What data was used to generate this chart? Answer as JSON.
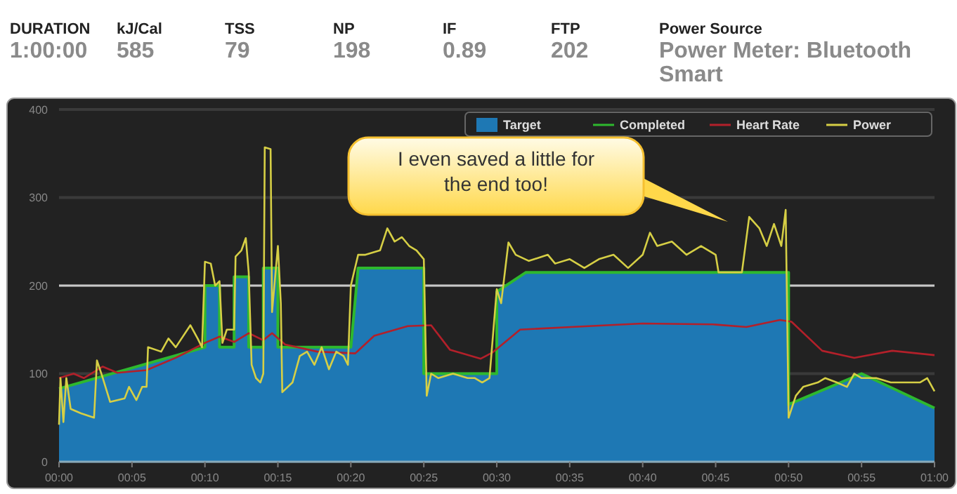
{
  "chart_data": [
    {
      "type": "other",
      "annotations": [
        "DURATION",
        "1:00:00",
        "kJ/Cal",
        "585",
        "TSS",
        "79",
        "NP",
        "198",
        "IF",
        "0.89",
        "FTP",
        "202",
        "Power Source",
        "Power Meter: Bluetooth Smart"
      ]
    },
    {
      "type": "line",
      "xlim": [
        0,
        60
      ],
      "ylim": [
        0,
        400
      ],
      "yticks": [
        0,
        100,
        200,
        300,
        400
      ],
      "xticks": [
        {
          "value": 0,
          "label": "00:00"
        },
        {
          "value": 5,
          "label": "00:05"
        },
        {
          "value": 10,
          "label": "00:10"
        },
        {
          "value": 15,
          "label": "00:15"
        },
        {
          "value": 20,
          "label": "00:20"
        },
        {
          "value": 25,
          "label": "00:25"
        },
        {
          "value": 30,
          "label": "00:30"
        },
        {
          "value": 35,
          "label": "00:35"
        },
        {
          "value": 40,
          "label": "00:40"
        },
        {
          "value": 45,
          "label": "00:45"
        },
        {
          "value": 50,
          "label": "00:50"
        },
        {
          "value": 55,
          "label": "00:55"
        },
        {
          "value": 60,
          "label": "01:00"
        }
      ],
      "grid": "y",
      "legend": "top right",
      "ref_lines": [
        {
          "axis": "y",
          "value": 200,
          "color": "#c8c8c8"
        }
      ],
      "annotations": [
        "I even saved a little for the end too!"
      ],
      "series": [
        {
          "name": "Target",
          "type": "area",
          "color": "#1e78b4",
          "x": [
            0,
            10,
            10,
            11,
            11,
            12,
            12,
            13,
            13,
            14,
            14,
            15,
            15,
            20,
            20.5,
            25,
            25,
            30,
            30,
            32,
            50,
            50,
            55,
            60
          ],
          "values": [
            83,
            130,
            200,
            200,
            130,
            130,
            210,
            210,
            130,
            130,
            220,
            220,
            130,
            130,
            220,
            220,
            100,
            100,
            193,
            215,
            215,
            65,
            100,
            61
          ]
        },
        {
          "name": "Completed",
          "type": "line",
          "color": "#2eb82e",
          "x": [
            0,
            10,
            10,
            11,
            11,
            12,
            12,
            13,
            13,
            14,
            14,
            15,
            15,
            20,
            20.5,
            25,
            25,
            30,
            30,
            32,
            50,
            50,
            55,
            60
          ],
          "values": [
            83,
            130,
            200,
            200,
            130,
            130,
            210,
            210,
            130,
            130,
            220,
            220,
            130,
            130,
            220,
            220,
            100,
            100,
            193,
            215,
            215,
            65,
            100,
            61
          ]
        },
        {
          "name": "Heart Rate",
          "type": "line",
          "color": "#b3202a",
          "x": [
            0,
            1,
            1.7,
            3,
            4,
            6,
            8,
            10,
            11,
            12,
            13,
            14,
            14.6,
            15.5,
            17.7,
            20.3,
            21.6,
            23.9,
            25.5,
            26.8,
            28.9,
            29.7,
            31.6,
            35.1,
            40,
            44.8,
            47.1,
            49.4,
            50.2,
            52.3,
            54.5,
            57.1,
            60
          ],
          "values": [
            95,
            100,
            95,
            108,
            101,
            104,
            118,
            135,
            142,
            136,
            146,
            138,
            146,
            133,
            125,
            123,
            143,
            154,
            155,
            127,
            117,
            124,
            150,
            153,
            157,
            156,
            153,
            161,
            159,
            126,
            118,
            126,
            121
          ]
        },
        {
          "name": "Power",
          "type": "line",
          "color": "#d6cf45",
          "x": [
            0,
            0.1,
            0.3,
            0.5,
            0.8,
            1.5,
            2.4,
            2.6,
            3,
            3.5,
            4.5,
            4.8,
            5.3,
            5.7,
            6,
            6.1,
            7,
            7.5,
            8,
            9,
            9.5,
            9.8,
            10,
            10.4,
            10.7,
            11,
            11.2,
            11.5,
            12,
            12.1,
            12.5,
            12.8,
            13,
            13.2,
            13.5,
            13.8,
            14,
            14.1,
            14.5,
            14.6,
            15,
            15.2,
            15.3,
            16,
            16.5,
            17,
            17.5,
            18,
            18.5,
            19,
            19.5,
            19.8,
            20,
            20.5,
            21,
            22,
            22.5,
            23,
            23.5,
            24,
            24.5,
            25,
            25.2,
            25.5,
            26,
            27,
            28,
            28.5,
            29,
            29.5,
            30,
            30.3,
            30.8,
            31.3,
            32.2,
            33.5,
            34,
            35,
            36,
            37,
            38,
            39,
            40,
            40.5,
            41,
            42,
            43,
            44,
            45,
            45.2,
            46,
            46.8,
            47.3,
            48,
            48.5,
            49,
            49.5,
            49.8,
            50,
            50.5,
            51,
            52,
            52.5,
            53.3,
            54,
            54.5,
            55,
            56,
            57,
            58,
            59,
            59.5,
            60
          ],
          "values": [
            42,
            95,
            45,
            95,
            60,
            55,
            50,
            115,
            95,
            68,
            72,
            85,
            70,
            85,
            85,
            130,
            125,
            140,
            130,
            155,
            140,
            130,
            227,
            225,
            200,
            205,
            135,
            150,
            150,
            233,
            240,
            254,
            215,
            110,
            95,
            90,
            100,
            357,
            355,
            170,
            245,
            180,
            79,
            90,
            120,
            125,
            110,
            130,
            105,
            125,
            120,
            110,
            200,
            235,
            235,
            240,
            265,
            250,
            255,
            245,
            240,
            230,
            75,
            100,
            95,
            100,
            95,
            95,
            90,
            95,
            196,
            180,
            249,
            235,
            228,
            235,
            225,
            230,
            220,
            230,
            235,
            220,
            235,
            260,
            245,
            250,
            235,
            245,
            235,
            215,
            215,
            215,
            278,
            265,
            245,
            270,
            245,
            286,
            50,
            75,
            85,
            90,
            95,
            90,
            85,
            100,
            95,
            95,
            90,
            90,
            90,
            95,
            80
          ]
        }
      ]
    }
  ]
}
